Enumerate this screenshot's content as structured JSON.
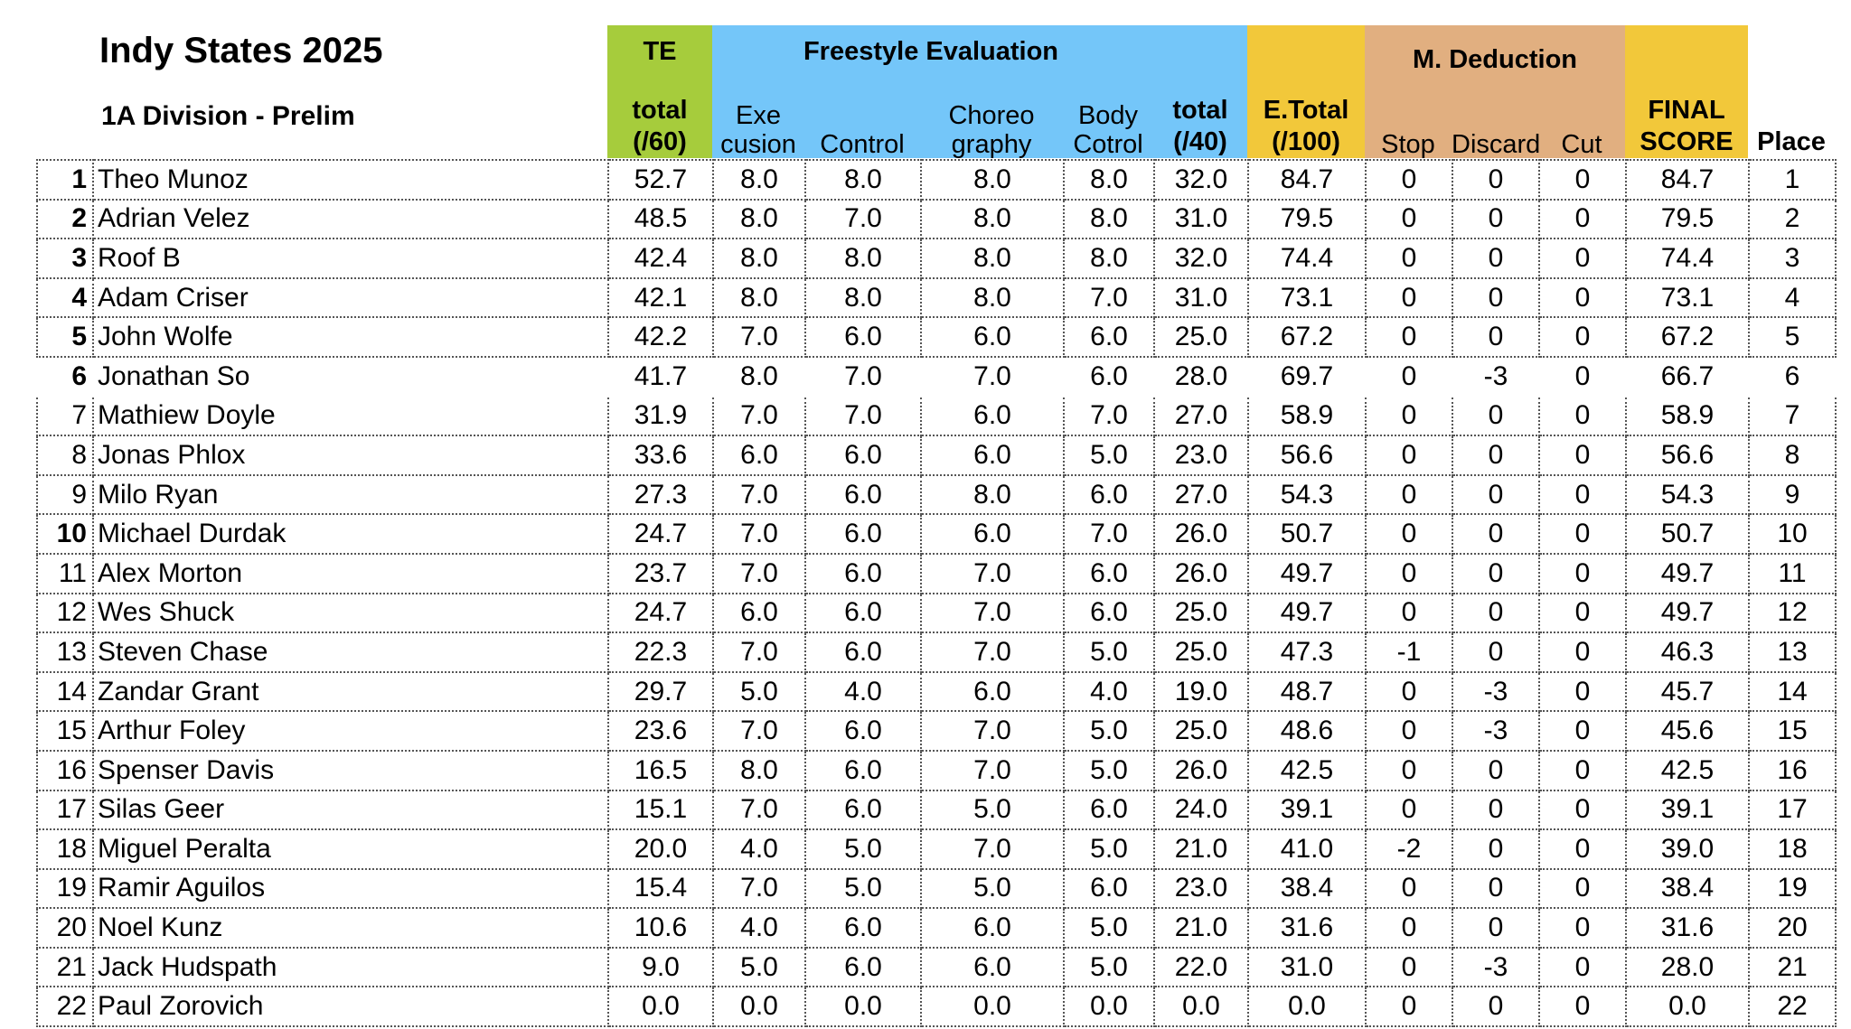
{
  "title": "Indy States 2025",
  "subtitle": "1A Division - Prelim",
  "colors": {
    "te": "#a6cc3c",
    "freestyle": "#74c6f9",
    "total": "#f2c83a",
    "deduction": "#e1af80"
  },
  "headers": {
    "te_group": "TE",
    "te_total_l1": "total",
    "te_total_l2": "(/60)",
    "freestyle_group": "Freestyle Evaluation",
    "exe_l1": "Exe",
    "exe_l2": "cusion",
    "control": "Control",
    "choreo_l1": "Choreo",
    "choreo_l2": "graphy",
    "body_l1": "Body",
    "body_l2": "Cotrol",
    "fe_total_l1": "total",
    "fe_total_l2": "(/40)",
    "etotal_l1": "E.Total",
    "etotal_l2": "(/100)",
    "deduction_group": "M. Deduction",
    "stop": "Stop",
    "discard": "Discard",
    "cut": "Cut",
    "final_l1": "FINAL",
    "final_l2": "SCORE",
    "place": "Place"
  },
  "rows": [
    [
      "1",
      "Theo Munoz",
      "52.7",
      "8.0",
      "8.0",
      "8.0",
      "8.0",
      "32.0",
      "84.7",
      "0",
      "0",
      "0",
      "84.7",
      "1"
    ],
    [
      "2",
      "Adrian Velez",
      "48.5",
      "8.0",
      "7.0",
      "8.0",
      "8.0",
      "31.0",
      "79.5",
      "0",
      "0",
      "0",
      "79.5",
      "2"
    ],
    [
      "3",
      "Roof B",
      "42.4",
      "8.0",
      "8.0",
      "8.0",
      "8.0",
      "32.0",
      "74.4",
      "0",
      "0",
      "0",
      "74.4",
      "3"
    ],
    [
      "4",
      "Adam Criser",
      "42.1",
      "8.0",
      "8.0",
      "8.0",
      "7.0",
      "31.0",
      "73.1",
      "0",
      "0",
      "0",
      "73.1",
      "4"
    ],
    [
      "5",
      "John Wolfe",
      "42.2",
      "7.0",
      "6.0",
      "6.0",
      "6.0",
      "25.0",
      "67.2",
      "0",
      "0",
      "0",
      "67.2",
      "5"
    ],
    [
      "6",
      "Jonathan So",
      "41.7",
      "8.0",
      "7.0",
      "7.0",
      "6.0",
      "28.0",
      "69.7",
      "0",
      "-3",
      "0",
      "66.7",
      "6"
    ],
    [
      "7",
      "Mathiew Doyle",
      "31.9",
      "7.0",
      "7.0",
      "6.0",
      "7.0",
      "27.0",
      "58.9",
      "0",
      "0",
      "0",
      "58.9",
      "7"
    ],
    [
      "8",
      "Jonas Phlox",
      "33.6",
      "6.0",
      "6.0",
      "6.0",
      "5.0",
      "23.0",
      "56.6",
      "0",
      "0",
      "0",
      "56.6",
      "8"
    ],
    [
      "9",
      "Milo Ryan",
      "27.3",
      "7.0",
      "6.0",
      "8.0",
      "6.0",
      "27.0",
      "54.3",
      "0",
      "0",
      "0",
      "54.3",
      "9"
    ],
    [
      "10",
      "Michael Durdak",
      "24.7",
      "7.0",
      "6.0",
      "6.0",
      "7.0",
      "26.0",
      "50.7",
      "0",
      "0",
      "0",
      "50.7",
      "10"
    ],
    [
      "11",
      "Alex Morton",
      "23.7",
      "7.0",
      "6.0",
      "7.0",
      "6.0",
      "26.0",
      "49.7",
      "0",
      "0",
      "0",
      "49.7",
      "11"
    ],
    [
      "12",
      "Wes Shuck",
      "24.7",
      "6.0",
      "6.0",
      "7.0",
      "6.0",
      "25.0",
      "49.7",
      "0",
      "0",
      "0",
      "49.7",
      "12"
    ],
    [
      "13",
      "Steven Chase",
      "22.3",
      "7.0",
      "6.0",
      "7.0",
      "5.0",
      "25.0",
      "47.3",
      "-1",
      "0",
      "0",
      "46.3",
      "13"
    ],
    [
      "14",
      "Zandar Grant",
      "29.7",
      "5.0",
      "4.0",
      "6.0",
      "4.0",
      "19.0",
      "48.7",
      "0",
      "-3",
      "0",
      "45.7",
      "14"
    ],
    [
      "15",
      "Arthur Foley",
      "23.6",
      "7.0",
      "6.0",
      "7.0",
      "5.0",
      "25.0",
      "48.6",
      "0",
      "-3",
      "0",
      "45.6",
      "15"
    ],
    [
      "16",
      "Spenser Davis",
      "16.5",
      "8.0",
      "6.0",
      "7.0",
      "5.0",
      "26.0",
      "42.5",
      "0",
      "0",
      "0",
      "42.5",
      "16"
    ],
    [
      "17",
      "Silas Geer",
      "15.1",
      "7.0",
      "6.0",
      "5.0",
      "6.0",
      "24.0",
      "39.1",
      "0",
      "0",
      "0",
      "39.1",
      "17"
    ],
    [
      "18",
      "Miguel Peralta",
      "20.0",
      "4.0",
      "5.0",
      "7.0",
      "5.0",
      "21.0",
      "41.0",
      "-2",
      "0",
      "0",
      "39.0",
      "18"
    ],
    [
      "19",
      "Ramir Aguilos",
      "15.4",
      "7.0",
      "5.0",
      "5.0",
      "6.0",
      "23.0",
      "38.4",
      "0",
      "0",
      "0",
      "38.4",
      "19"
    ],
    [
      "20",
      "Noel Kunz",
      "10.6",
      "4.0",
      "6.0",
      "6.0",
      "5.0",
      "21.0",
      "31.6",
      "0",
      "0",
      "0",
      "31.6",
      "20"
    ],
    [
      "21",
      "Jack Hudspath",
      "9.0",
      "5.0",
      "6.0",
      "6.0",
      "5.0",
      "22.0",
      "31.0",
      "0",
      "-3",
      "0",
      "28.0",
      "21"
    ],
    [
      "22",
      "Paul Zorovich",
      "0.0",
      "0.0",
      "0.0",
      "0.0",
      "0.0",
      "0.0",
      "0.0",
      "0",
      "0",
      "0",
      "0.0",
      "22"
    ]
  ]
}
